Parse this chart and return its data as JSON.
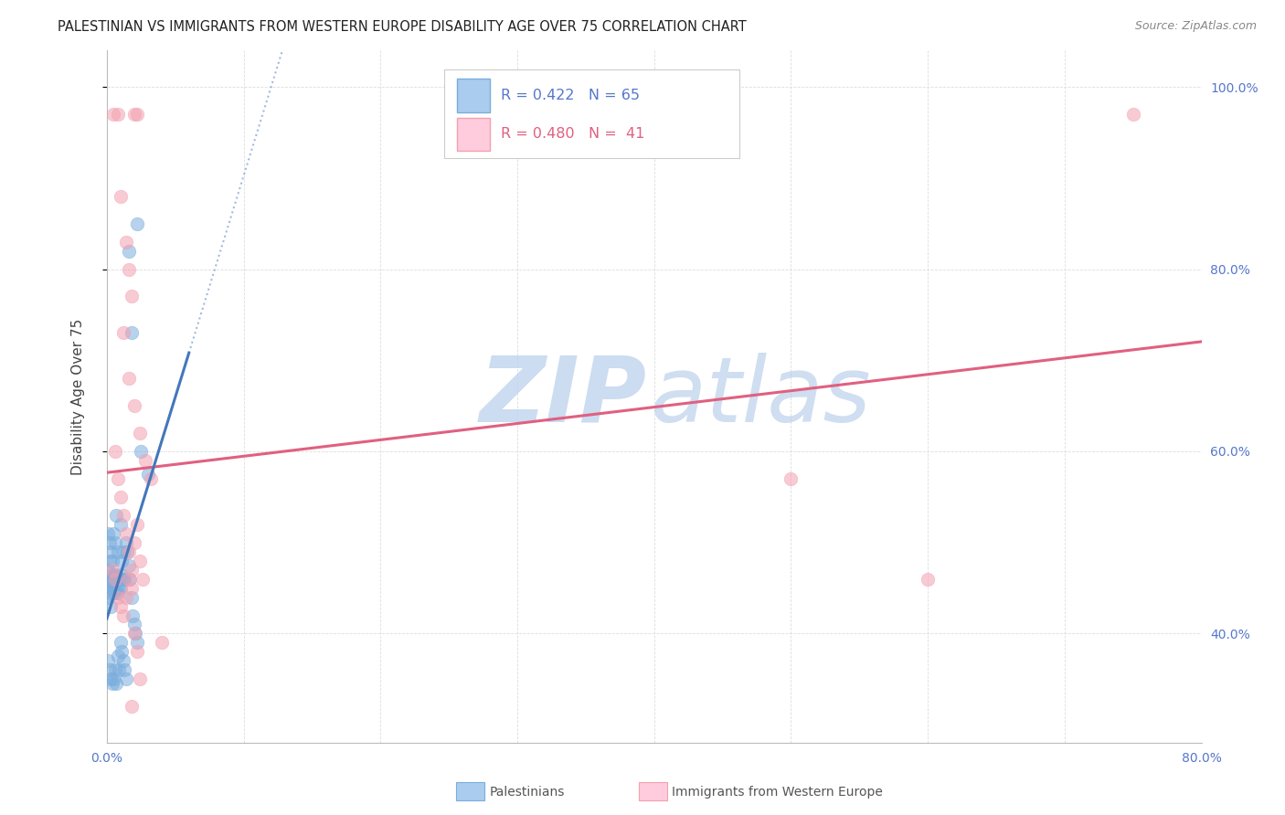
{
  "title": "PALESTINIAN VS IMMIGRANTS FROM WESTERN EUROPE DISABILITY AGE OVER 75 CORRELATION CHART",
  "source": "Source: ZipAtlas.com",
  "ylabel": "Disability Age Over 75",
  "xlim": [
    0.0,
    0.8
  ],
  "ylim": [
    0.28,
    1.04
  ],
  "xtick_vals": [
    0.0,
    0.1,
    0.2,
    0.3,
    0.4,
    0.5,
    0.6,
    0.7,
    0.8
  ],
  "xtick_labels": [
    "0.0%",
    "",
    "",
    "",
    "",
    "",
    "",
    "",
    "80.0%"
  ],
  "ytick_vals": [
    0.4,
    0.6,
    0.8,
    1.0
  ],
  "ytick_labels": [
    "40.0%",
    "60.0%",
    "80.0%",
    "100.0%"
  ],
  "r_blue": 0.422,
  "n_blue": 65,
  "r_pink": 0.48,
  "n_pink": 41,
  "blue_color": "#7AADDD",
  "pink_color": "#F4A0B0",
  "blue_line_color": "#4477BB",
  "pink_line_color": "#E06080",
  "watermark_zip_color": "#B8CEED",
  "watermark_atlas_color": "#9BBDE8",
  "background_color": "#FFFFFF",
  "grid_color": "#DDDDDD",
  "tick_color": "#5577CC",
  "blue_x": [
    0.001,
    0.001,
    0.001,
    0.001,
    0.002,
    0.002,
    0.002,
    0.002,
    0.003,
    0.003,
    0.003,
    0.003,
    0.004,
    0.004,
    0.004,
    0.005,
    0.005,
    0.005,
    0.006,
    0.006,
    0.006,
    0.007,
    0.007,
    0.007,
    0.008,
    0.008,
    0.008,
    0.009,
    0.009,
    0.01,
    0.01,
    0.01,
    0.011,
    0.011,
    0.012,
    0.012,
    0.013,
    0.014,
    0.015,
    0.016,
    0.017,
    0.018,
    0.019,
    0.02,
    0.021,
    0.022,
    0.001,
    0.002,
    0.003,
    0.004,
    0.005,
    0.006,
    0.007,
    0.008,
    0.009,
    0.01,
    0.011,
    0.012,
    0.013,
    0.014,
    0.016,
    0.018,
    0.022,
    0.025,
    0.03
  ],
  "blue_y": [
    0.47,
    0.455,
    0.44,
    0.51,
    0.48,
    0.46,
    0.445,
    0.5,
    0.465,
    0.45,
    0.43,
    0.49,
    0.46,
    0.445,
    0.48,
    0.465,
    0.45,
    0.51,
    0.46,
    0.445,
    0.5,
    0.465,
    0.45,
    0.53,
    0.46,
    0.445,
    0.49,
    0.46,
    0.45,
    0.465,
    0.45,
    0.52,
    0.46,
    0.48,
    0.46,
    0.49,
    0.46,
    0.5,
    0.49,
    0.475,
    0.46,
    0.44,
    0.42,
    0.41,
    0.4,
    0.39,
    0.37,
    0.36,
    0.35,
    0.345,
    0.35,
    0.36,
    0.345,
    0.375,
    0.36,
    0.39,
    0.38,
    0.37,
    0.36,
    0.35,
    0.82,
    0.73,
    0.85,
    0.6,
    0.575
  ],
  "pink_x": [
    0.005,
    0.008,
    0.02,
    0.022,
    0.01,
    0.014,
    0.016,
    0.018,
    0.012,
    0.016,
    0.02,
    0.024,
    0.028,
    0.032,
    0.006,
    0.008,
    0.01,
    0.012,
    0.014,
    0.016,
    0.018,
    0.02,
    0.022,
    0.024,
    0.026,
    0.004,
    0.006,
    0.008,
    0.01,
    0.012,
    0.014,
    0.016,
    0.018,
    0.02,
    0.022,
    0.024,
    0.04,
    0.5,
    0.6,
    0.75,
    0.018
  ],
  "pink_y": [
    0.97,
    0.97,
    0.97,
    0.97,
    0.88,
    0.83,
    0.8,
    0.77,
    0.73,
    0.68,
    0.65,
    0.62,
    0.59,
    0.57,
    0.6,
    0.57,
    0.55,
    0.53,
    0.51,
    0.49,
    0.47,
    0.5,
    0.52,
    0.48,
    0.46,
    0.47,
    0.46,
    0.44,
    0.43,
    0.42,
    0.44,
    0.46,
    0.45,
    0.4,
    0.38,
    0.35,
    0.39,
    0.57,
    0.46,
    0.97,
    0.32
  ]
}
